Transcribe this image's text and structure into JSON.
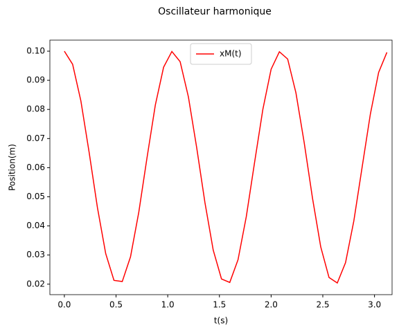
{
  "chart_data": {
    "type": "line",
    "title": "Oscillateur harmonique",
    "xlabel": "t(s)",
    "ylabel": "Position(m)",
    "x": [
      0,
      0.08,
      0.16,
      0.24,
      0.32,
      0.4,
      0.48,
      0.56,
      0.64,
      0.72,
      0.8,
      0.88,
      0.96,
      1.04,
      1.12,
      1.2,
      1.28,
      1.36,
      1.44,
      1.52,
      1.6,
      1.68,
      1.76,
      1.84,
      1.92,
      2.0,
      2.08,
      2.16,
      2.24,
      2.32,
      2.4,
      2.48,
      2.56,
      2.64,
      2.72,
      2.8,
      2.88,
      2.96,
      3.04,
      3.12
    ],
    "series": [
      {
        "name": "xM(t)",
        "color": "#ff0000",
        "values": [
          0.1,
          0.0955,
          0.0829,
          0.0652,
          0.0463,
          0.0305,
          0.0213,
          0.0209,
          0.0294,
          0.0447,
          0.0635,
          0.0815,
          0.0945,
          0.0999,
          0.0964,
          0.0843,
          0.0669,
          0.048,
          0.0317,
          0.0218,
          0.0206,
          0.0284,
          0.0432,
          0.0618,
          0.08,
          0.0938,
          0.0998,
          0.0973,
          0.0857,
          0.0686,
          0.0496,
          0.0328,
          0.0223,
          0.0204,
          0.0274,
          0.0417,
          0.0601,
          0.0784,
          0.0927,
          0.0996
        ]
      }
    ],
    "xlim": [
      -0.14,
      3.17
    ],
    "ylim": [
      0.0164,
      0.1038
    ],
    "xticks": [
      {
        "value": 0,
        "label": "0.0"
      },
      {
        "value": 0.5,
        "label": "0.5"
      },
      {
        "value": 1,
        "label": "1.0"
      },
      {
        "value": 1.5,
        "label": "1.5"
      },
      {
        "value": 2,
        "label": "2.0"
      },
      {
        "value": 2.5,
        "label": "2.5"
      },
      {
        "value": 3,
        "label": "3.0"
      }
    ],
    "yticks": [
      0.02,
      0.03,
      0.04,
      0.05,
      0.06,
      0.07,
      0.08,
      0.09,
      {
        "value": 0.1,
        "label": "0.10"
      }
    ],
    "legend": "upper center",
    "grid": false
  }
}
